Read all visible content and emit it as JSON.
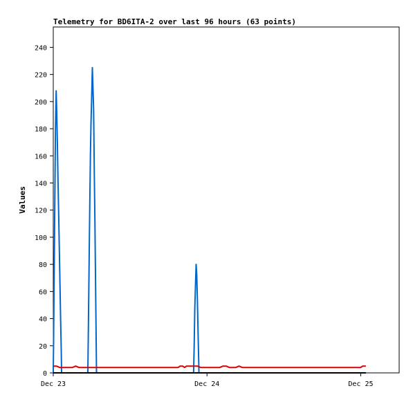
{
  "chart_data": {
    "type": "line",
    "title": "Telemetry for BD6ITA-2 over last 96 hours (63 points)",
    "xlabel": "",
    "ylabel": "Values",
    "x_ticks": [
      "Dec 23",
      "Dec 24",
      "Dec 25"
    ],
    "x_tick_hours": [
      0,
      24,
      48
    ],
    "xlim": [
      0,
      54
    ],
    "ylim": [
      0,
      255
    ],
    "y_ticks": [
      0,
      20,
      40,
      60,
      80,
      100,
      120,
      140,
      160,
      180,
      200,
      220,
      240
    ],
    "grid": false,
    "legend": "none",
    "series": [
      {
        "color": "#0066cc",
        "points": [
          [
            0.0,
            0
          ],
          [
            0.05,
            25
          ],
          [
            0.15,
            78
          ],
          [
            0.25,
            130
          ],
          [
            0.35,
            180
          ],
          [
            0.45,
            208
          ],
          [
            0.55,
            190
          ],
          [
            0.65,
            168
          ],
          [
            0.75,
            140
          ],
          [
            0.85,
            115
          ],
          [
            0.95,
            90
          ],
          [
            1.05,
            65
          ],
          [
            1.15,
            40
          ],
          [
            1.25,
            15
          ],
          [
            1.3,
            0
          ],
          [
            5.4,
            0
          ],
          [
            5.5,
            40
          ],
          [
            5.6,
            85
          ],
          [
            5.7,
            125
          ],
          [
            5.8,
            160
          ],
          [
            5.9,
            185
          ],
          [
            6.0,
            205
          ],
          [
            6.1,
            225
          ],
          [
            6.2,
            210
          ],
          [
            6.3,
            195
          ],
          [
            6.4,
            148
          ],
          [
            6.5,
            112
          ],
          [
            6.6,
            68
          ],
          [
            6.7,
            25
          ],
          [
            6.75,
            0
          ],
          [
            21.9,
            0
          ],
          [
            22.0,
            20
          ],
          [
            22.1,
            48
          ],
          [
            22.2,
            65
          ],
          [
            22.3,
            80
          ],
          [
            22.4,
            72
          ],
          [
            22.5,
            55
          ],
          [
            22.6,
            30
          ],
          [
            22.7,
            10
          ],
          [
            22.75,
            0
          ]
        ]
      },
      {
        "color": "#dd0000",
        "points": [
          [
            0.0,
            5
          ],
          [
            0.5,
            5
          ],
          [
            1.0,
            4
          ],
          [
            2.0,
            4
          ],
          [
            3.0,
            4
          ],
          [
            3.5,
            5
          ],
          [
            4.0,
            4
          ],
          [
            12.0,
            4
          ],
          [
            19.5,
            4
          ],
          [
            19.8,
            5
          ],
          [
            20.2,
            5
          ],
          [
            20.5,
            4
          ],
          [
            20.8,
            5
          ],
          [
            22.5,
            5
          ],
          [
            23.0,
            4
          ],
          [
            26.0,
            4
          ],
          [
            26.5,
            5
          ],
          [
            27.0,
            5
          ],
          [
            27.5,
            4
          ],
          [
            28.5,
            4
          ],
          [
            29.0,
            5
          ],
          [
            29.5,
            4
          ],
          [
            48.0,
            4
          ],
          [
            48.3,
            5
          ],
          [
            48.8,
            5
          ]
        ]
      },
      {
        "color": "#000000",
        "points": [
          [
            0.0,
            0
          ],
          [
            48.8,
            0
          ]
        ]
      }
    ]
  }
}
